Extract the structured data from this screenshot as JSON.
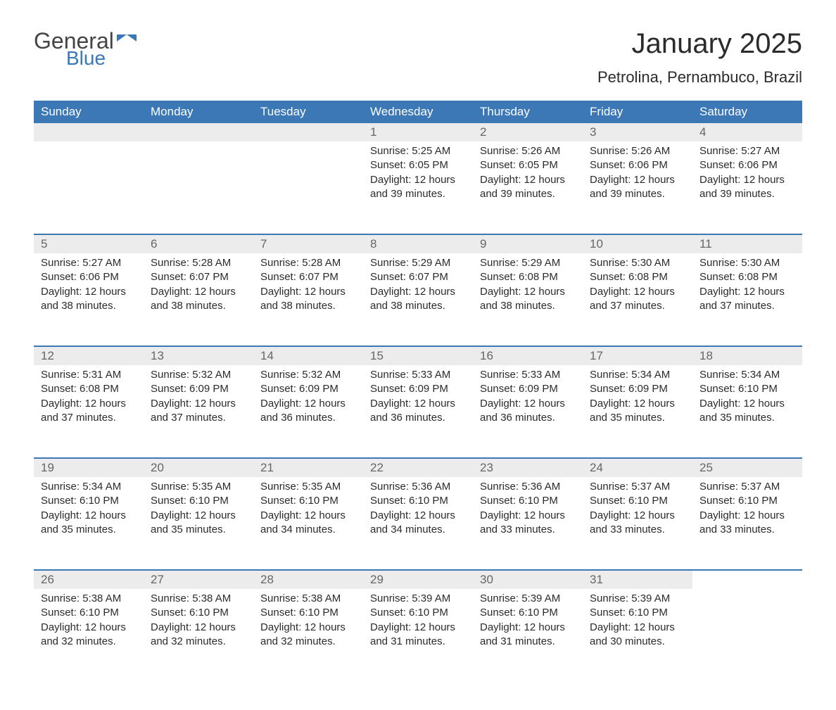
{
  "logo": {
    "text1": "General",
    "text2": "Blue"
  },
  "title": "January 2025",
  "subtitle": "Petrolina, Pernambuco, Brazil",
  "colors": {
    "header_bg": "#3b78b5",
    "header_text": "#ffffff",
    "daynum_bg": "#ececec",
    "daynum_text": "#666666",
    "body_text": "#2b2b2b",
    "page_bg": "#ffffff",
    "row_border": "#3b78b5"
  },
  "fonts": {
    "title_size": 40,
    "subtitle_size": 22,
    "header_size": 17,
    "body_size": 15
  },
  "day_labels": [
    "Sunday",
    "Monday",
    "Tuesday",
    "Wednesday",
    "Thursday",
    "Friday",
    "Saturday"
  ],
  "weeks": [
    [
      null,
      null,
      null,
      {
        "n": "1",
        "sunrise": "5:25 AM",
        "sunset": "6:05 PM",
        "dl": "12 hours and 39 minutes."
      },
      {
        "n": "2",
        "sunrise": "5:26 AM",
        "sunset": "6:05 PM",
        "dl": "12 hours and 39 minutes."
      },
      {
        "n": "3",
        "sunrise": "5:26 AM",
        "sunset": "6:06 PM",
        "dl": "12 hours and 39 minutes."
      },
      {
        "n": "4",
        "sunrise": "5:27 AM",
        "sunset": "6:06 PM",
        "dl": "12 hours and 39 minutes."
      }
    ],
    [
      {
        "n": "5",
        "sunrise": "5:27 AM",
        "sunset": "6:06 PM",
        "dl": "12 hours and 38 minutes."
      },
      {
        "n": "6",
        "sunrise": "5:28 AM",
        "sunset": "6:07 PM",
        "dl": "12 hours and 38 minutes."
      },
      {
        "n": "7",
        "sunrise": "5:28 AM",
        "sunset": "6:07 PM",
        "dl": "12 hours and 38 minutes."
      },
      {
        "n": "8",
        "sunrise": "5:29 AM",
        "sunset": "6:07 PM",
        "dl": "12 hours and 38 minutes."
      },
      {
        "n": "9",
        "sunrise": "5:29 AM",
        "sunset": "6:08 PM",
        "dl": "12 hours and 38 minutes."
      },
      {
        "n": "10",
        "sunrise": "5:30 AM",
        "sunset": "6:08 PM",
        "dl": "12 hours and 37 minutes."
      },
      {
        "n": "11",
        "sunrise": "5:30 AM",
        "sunset": "6:08 PM",
        "dl": "12 hours and 37 minutes."
      }
    ],
    [
      {
        "n": "12",
        "sunrise": "5:31 AM",
        "sunset": "6:08 PM",
        "dl": "12 hours and 37 minutes."
      },
      {
        "n": "13",
        "sunrise": "5:32 AM",
        "sunset": "6:09 PM",
        "dl": "12 hours and 37 minutes."
      },
      {
        "n": "14",
        "sunrise": "5:32 AM",
        "sunset": "6:09 PM",
        "dl": "12 hours and 36 minutes."
      },
      {
        "n": "15",
        "sunrise": "5:33 AM",
        "sunset": "6:09 PM",
        "dl": "12 hours and 36 minutes."
      },
      {
        "n": "16",
        "sunrise": "5:33 AM",
        "sunset": "6:09 PM",
        "dl": "12 hours and 36 minutes."
      },
      {
        "n": "17",
        "sunrise": "5:34 AM",
        "sunset": "6:09 PM",
        "dl": "12 hours and 35 minutes."
      },
      {
        "n": "18",
        "sunrise": "5:34 AM",
        "sunset": "6:10 PM",
        "dl": "12 hours and 35 minutes."
      }
    ],
    [
      {
        "n": "19",
        "sunrise": "5:34 AM",
        "sunset": "6:10 PM",
        "dl": "12 hours and 35 minutes."
      },
      {
        "n": "20",
        "sunrise": "5:35 AM",
        "sunset": "6:10 PM",
        "dl": "12 hours and 35 minutes."
      },
      {
        "n": "21",
        "sunrise": "5:35 AM",
        "sunset": "6:10 PM",
        "dl": "12 hours and 34 minutes."
      },
      {
        "n": "22",
        "sunrise": "5:36 AM",
        "sunset": "6:10 PM",
        "dl": "12 hours and 34 minutes."
      },
      {
        "n": "23",
        "sunrise": "5:36 AM",
        "sunset": "6:10 PM",
        "dl": "12 hours and 33 minutes."
      },
      {
        "n": "24",
        "sunrise": "5:37 AM",
        "sunset": "6:10 PM",
        "dl": "12 hours and 33 minutes."
      },
      {
        "n": "25",
        "sunrise": "5:37 AM",
        "sunset": "6:10 PM",
        "dl": "12 hours and 33 minutes."
      }
    ],
    [
      {
        "n": "26",
        "sunrise": "5:38 AM",
        "sunset": "6:10 PM",
        "dl": "12 hours and 32 minutes."
      },
      {
        "n": "27",
        "sunrise": "5:38 AM",
        "sunset": "6:10 PM",
        "dl": "12 hours and 32 minutes."
      },
      {
        "n": "28",
        "sunrise": "5:38 AM",
        "sunset": "6:10 PM",
        "dl": "12 hours and 32 minutes."
      },
      {
        "n": "29",
        "sunrise": "5:39 AM",
        "sunset": "6:10 PM",
        "dl": "12 hours and 31 minutes."
      },
      {
        "n": "30",
        "sunrise": "5:39 AM",
        "sunset": "6:10 PM",
        "dl": "12 hours and 31 minutes."
      },
      {
        "n": "31",
        "sunrise": "5:39 AM",
        "sunset": "6:10 PM",
        "dl": "12 hours and 30 minutes."
      },
      null
    ]
  ],
  "labels": {
    "sunrise": "Sunrise: ",
    "sunset": "Sunset: ",
    "daylight": "Daylight: "
  }
}
